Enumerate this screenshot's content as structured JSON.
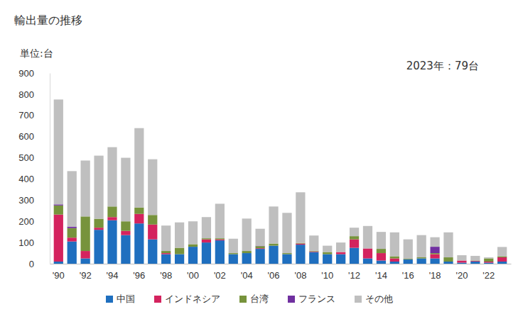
{
  "chart_data": {
    "type": "bar",
    "stacked": true,
    "title": "輸出量の推移",
    "y_label": "単位:台",
    "annotation": "2023年：79台",
    "categories": [
      "'90",
      null,
      "'92",
      null,
      "'94",
      null,
      "'96",
      null,
      "'98",
      null,
      "'00",
      null,
      "'02",
      null,
      "'04",
      null,
      "'06",
      null,
      "'08",
      null,
      "'10",
      null,
      "'12",
      null,
      "'14",
      null,
      "'16",
      null,
      "'18",
      null,
      "'20",
      null,
      "'22",
      null
    ],
    "series": [
      {
        "name": "中国",
        "color": "#1f6fbf",
        "values": [
          10,
          105,
          25,
          160,
          205,
          135,
          190,
          115,
          45,
          45,
          80,
          100,
          110,
          45,
          50,
          70,
          85,
          45,
          90,
          55,
          45,
          45,
          75,
          25,
          15,
          10,
          20,
          25,
          25,
          10,
          5,
          10,
          5,
          10
        ]
      },
      {
        "name": "インドネシア",
        "color": "#d4235e",
        "values": [
          222,
          18,
          35,
          10,
          15,
          20,
          45,
          70,
          5,
          0,
          0,
          15,
          5,
          0,
          0,
          3,
          0,
          0,
          5,
          3,
          0,
          10,
          40,
          47,
          35,
          15,
          0,
          0,
          20,
          0,
          10,
          3,
          5,
          20
        ]
      },
      {
        "name": "台湾",
        "color": "#77933c",
        "values": [
          43,
          45,
          163,
          42,
          50,
          45,
          30,
          45,
          10,
          30,
          12,
          5,
          5,
          5,
          10,
          10,
          10,
          5,
          3,
          3,
          10,
          0,
          15,
          0,
          20,
          10,
          3,
          5,
          5,
          20,
          0,
          2,
          15,
          5
        ]
      },
      {
        "name": "フランス",
        "color": "#7030a0",
        "values": [
          5,
          7,
          0,
          0,
          0,
          0,
          0,
          0,
          0,
          0,
          0,
          0,
          0,
          0,
          0,
          2,
          0,
          0,
          0,
          0,
          0,
          0,
          0,
          0,
          0,
          0,
          0,
          0,
          30,
          0,
          0,
          0,
          0,
          0
        ]
      },
      {
        "name": "その他",
        "color": "#bfbfbf",
        "values": [
          495,
          262,
          264,
          298,
          280,
          300,
          375,
          263,
          120,
          120,
          108,
          100,
          163,
          68,
          153,
          80,
          175,
          190,
          239,
          72,
          30,
          45,
          40,
          106,
          80,
          113,
          92,
          105,
          45,
          118,
          25,
          22,
          5,
          44
        ]
      }
    ],
    "ylim": [
      0,
      900
    ],
    "yticks": [
      0,
      100,
      200,
      300,
      400,
      500,
      600,
      700,
      800,
      900
    ],
    "legend": "bottom"
  }
}
